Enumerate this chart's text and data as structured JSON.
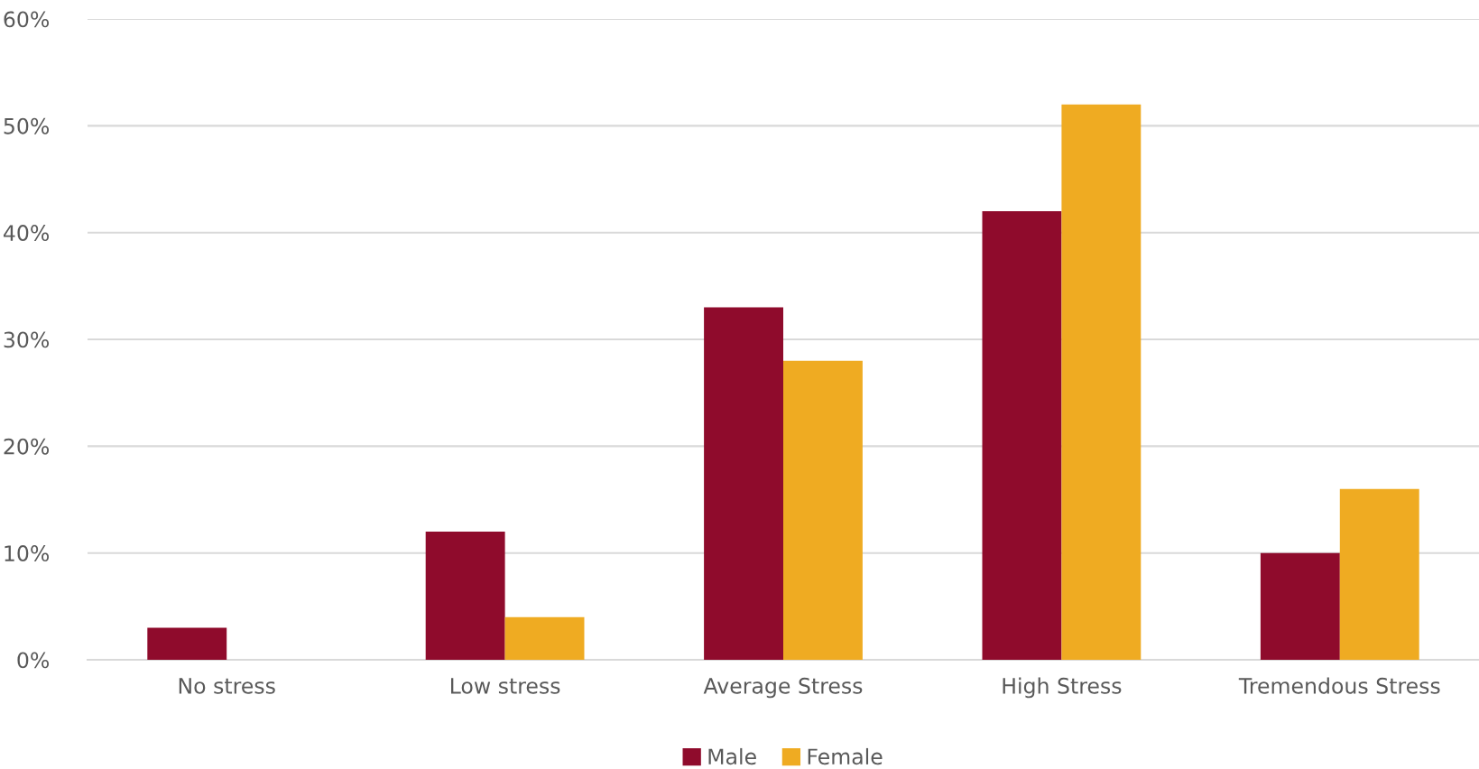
{
  "chart_data": {
    "type": "bar",
    "categories": [
      "No stress",
      "Low stress",
      "Average Stress",
      "High Stress",
      "Tremendous Stress"
    ],
    "series": [
      {
        "name": "Male",
        "color": "#8f0b2c",
        "values": [
          3,
          12,
          33,
          42,
          10
        ]
      },
      {
        "name": "Female",
        "color": "#efab22",
        "values": [
          0,
          4,
          28,
          52,
          16
        ]
      }
    ],
    "ylim": [
      0,
      60
    ],
    "yticks": [
      {
        "value": 0,
        "label": "0%"
      },
      {
        "value": 10,
        "label": "10%"
      },
      {
        "value": 20,
        "label": "20%"
      },
      {
        "value": 30,
        "label": "30%"
      },
      {
        "value": 40,
        "label": "40%"
      },
      {
        "value": 50,
        "label": "50%"
      },
      {
        "value": 60,
        "label": "60%"
      }
    ],
    "grid": "y",
    "legend": "bottom"
  }
}
